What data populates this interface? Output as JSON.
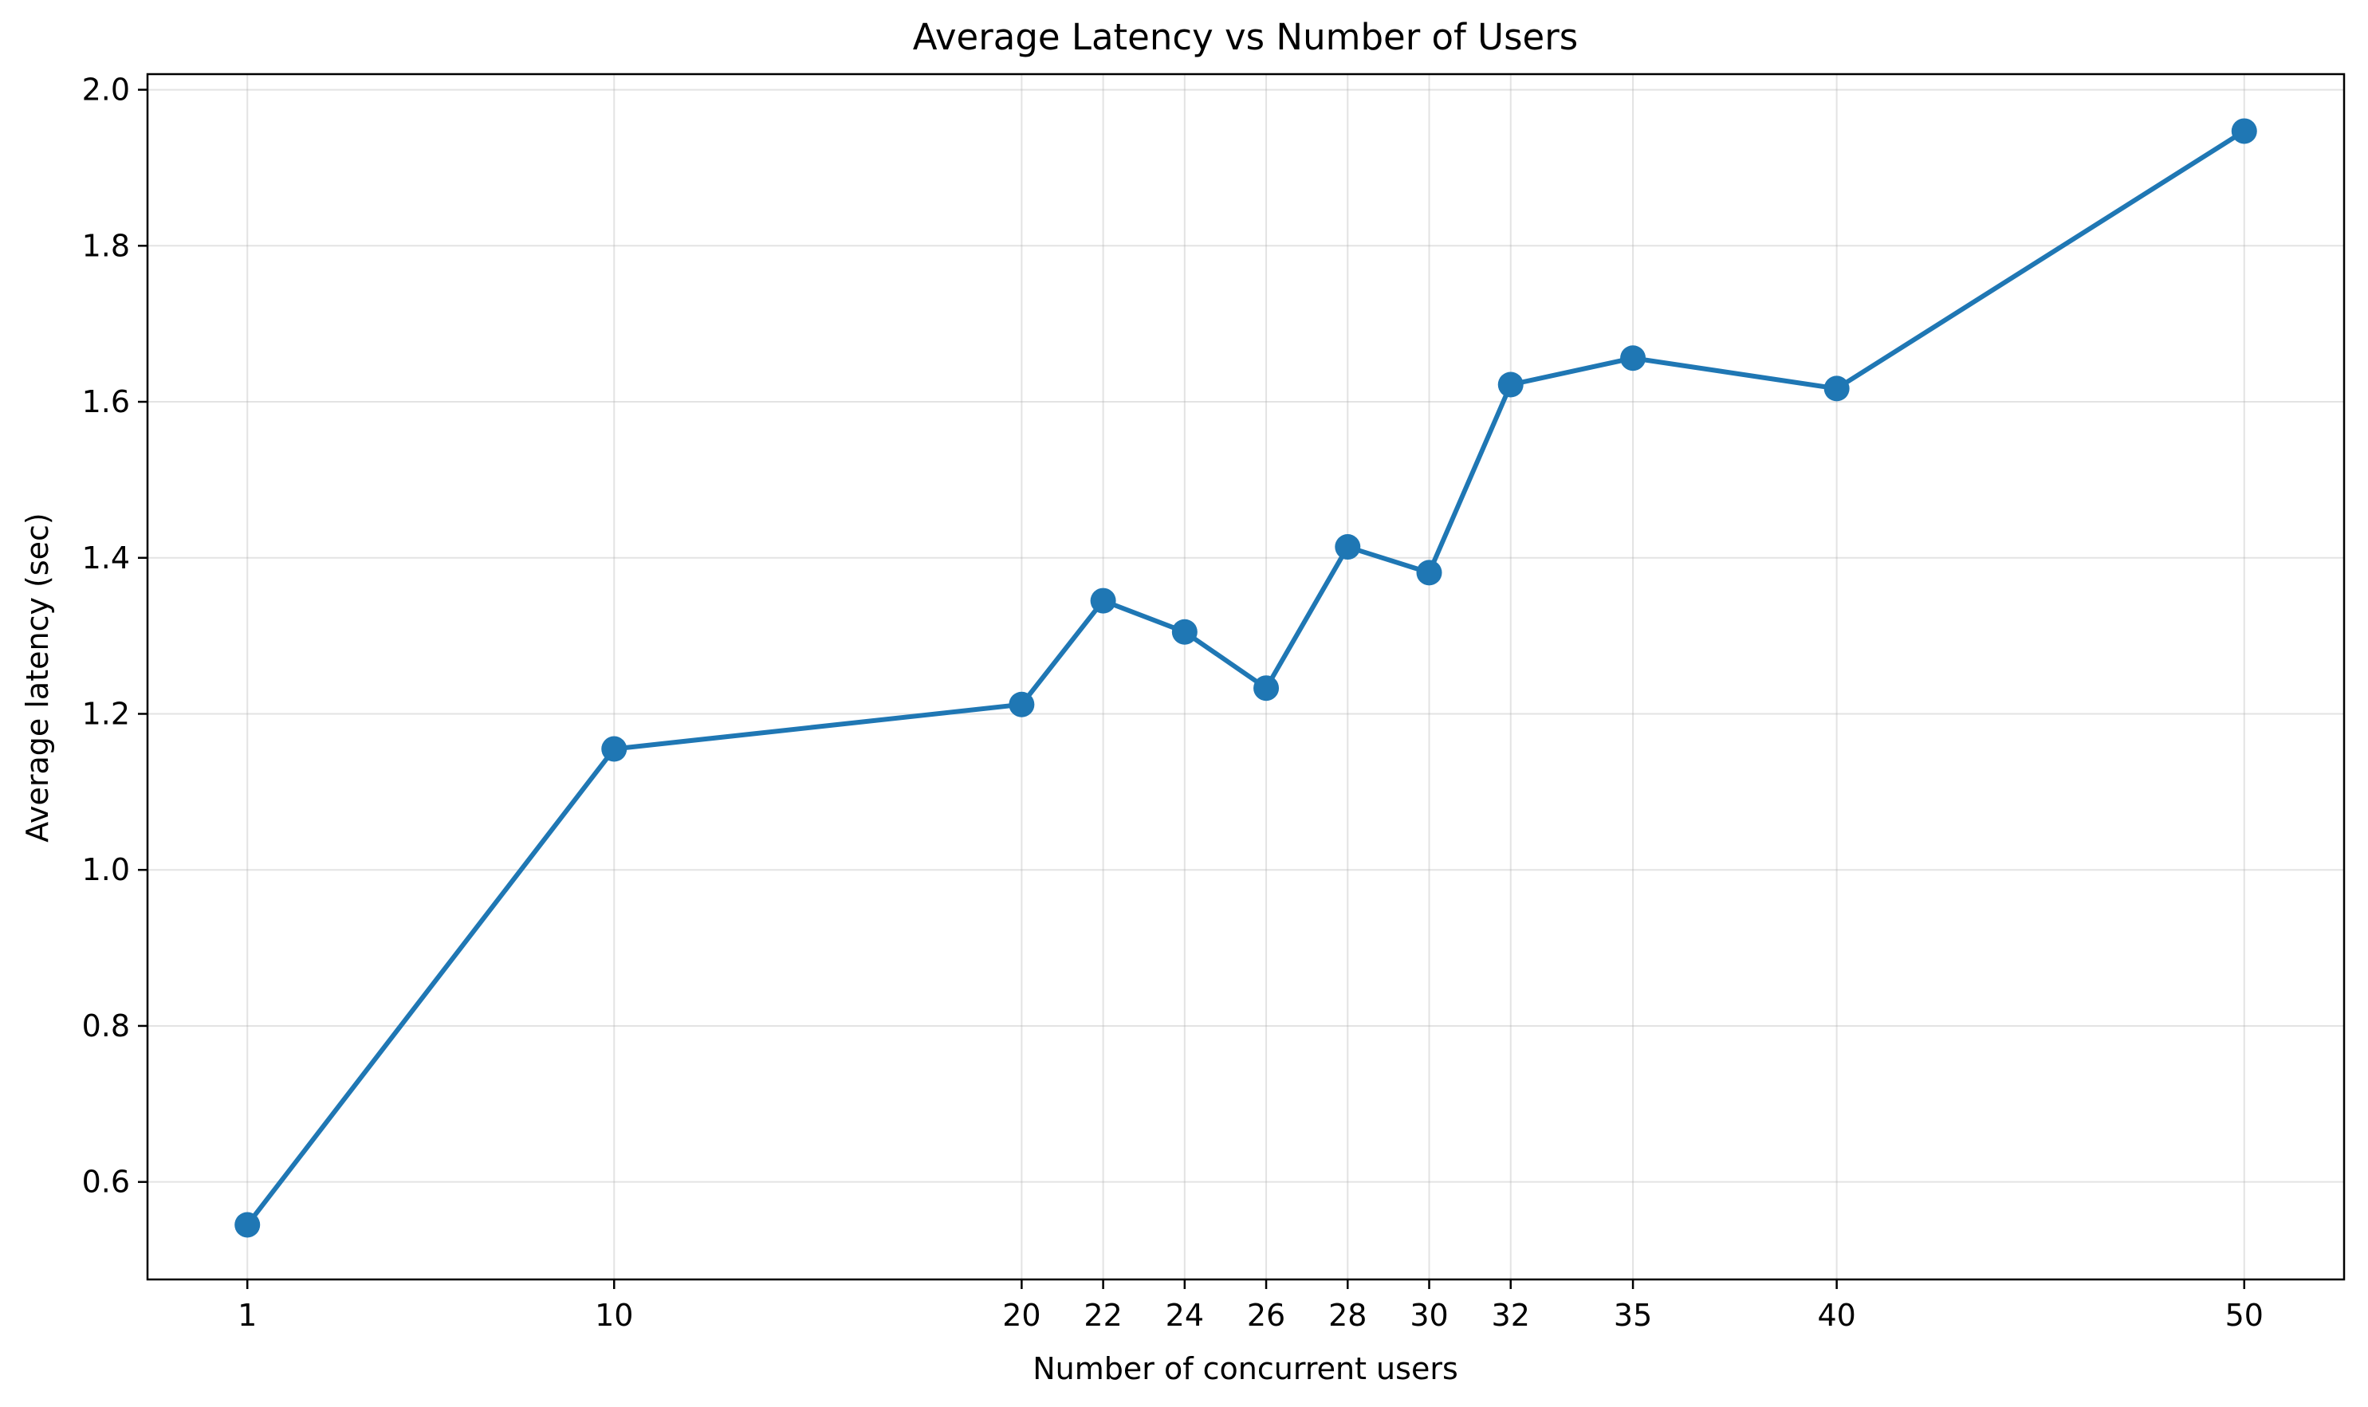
{
  "chart_data": {
    "type": "line",
    "title": "Average Latency vs Number of Users",
    "xlabel": "Number of concurrent users",
    "ylabel": "Average latency (sec)",
    "x": [
      1,
      10,
      20,
      22,
      24,
      26,
      28,
      30,
      32,
      35,
      40,
      50
    ],
    "x_tick_labels": [
      "1",
      "10",
      "20",
      "22",
      "24",
      "26",
      "28",
      "30",
      "32",
      "35",
      "40",
      "50"
    ],
    "series": [
      {
        "values": [
          0.545,
          1.155,
          1.212,
          1.345,
          1.305,
          1.233,
          1.414,
          1.381,
          1.622,
          1.656,
          1.617,
          1.947
        ],
        "color": "#1f77b4",
        "marker": "circle"
      }
    ],
    "xlim": [
      -1.45,
      52.45
    ],
    "ylim": [
      0.475,
      2.02
    ],
    "y_ticks": [
      0.6,
      0.8,
      1.0,
      1.2,
      1.4,
      1.6,
      1.8,
      2.0
    ],
    "y_tick_labels": [
      "0.6",
      "0.8",
      "1.0",
      "1.2",
      "1.4",
      "1.6",
      "1.8",
      "2.0"
    ],
    "grid": true
  }
}
